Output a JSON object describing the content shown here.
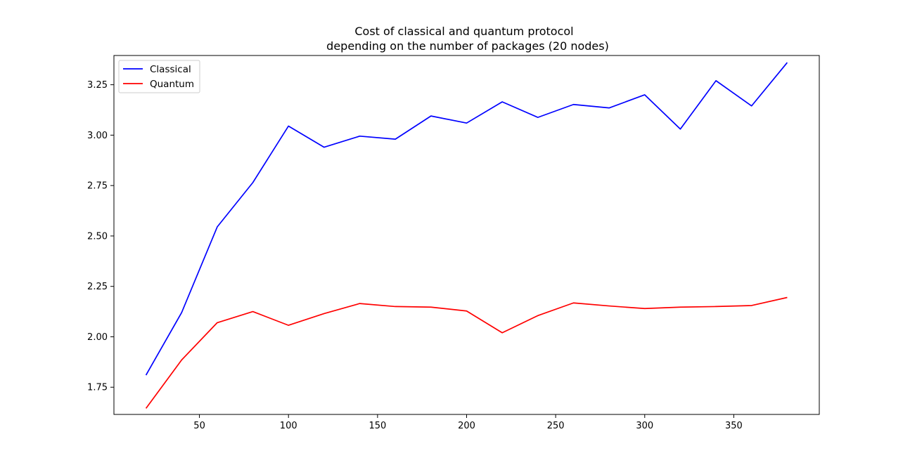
{
  "chart_data": {
    "type": "line",
    "title_lines": [
      "Cost of classical and quantum protocol",
      "depending on the number of packages (20 nodes)"
    ],
    "xlabel": "",
    "ylabel": "",
    "x": [
      20,
      40,
      60,
      80,
      100,
      120,
      140,
      160,
      180,
      200,
      220,
      240,
      260,
      280,
      300,
      320,
      340,
      360,
      380
    ],
    "xlim": [
      2,
      398
    ],
    "ylim": [
      1.615,
      3.395
    ],
    "x_ticks": [
      50,
      100,
      150,
      200,
      250,
      300,
      350
    ],
    "y_ticks": [
      1.75,
      2.0,
      2.25,
      2.5,
      2.75,
      3.0,
      3.25
    ],
    "x_tick_labels": [
      "50",
      "100",
      "150",
      "200",
      "250",
      "300",
      "350"
    ],
    "y_tick_labels": [
      "1.75",
      "2.00",
      "2.25",
      "2.50",
      "2.75",
      "3.00",
      "3.25"
    ],
    "grid": false,
    "legend_position": "top-left",
    "series": [
      {
        "name": "Classical",
        "color": "#0000ff",
        "values": [
          1.81,
          2.12,
          2.545,
          2.765,
          3.045,
          2.94,
          2.995,
          2.98,
          3.095,
          3.06,
          3.165,
          3.088,
          3.152,
          3.135,
          3.2,
          3.03,
          3.27,
          3.145,
          3.36
        ]
      },
      {
        "name": "Quantum",
        "color": "#ff0000",
        "values": [
          1.645,
          1.885,
          2.07,
          2.125,
          2.057,
          2.115,
          2.165,
          2.15,
          2.147,
          2.128,
          2.02,
          2.105,
          2.168,
          2.153,
          2.14,
          2.147,
          2.15,
          2.155,
          2.195
        ]
      }
    ]
  }
}
